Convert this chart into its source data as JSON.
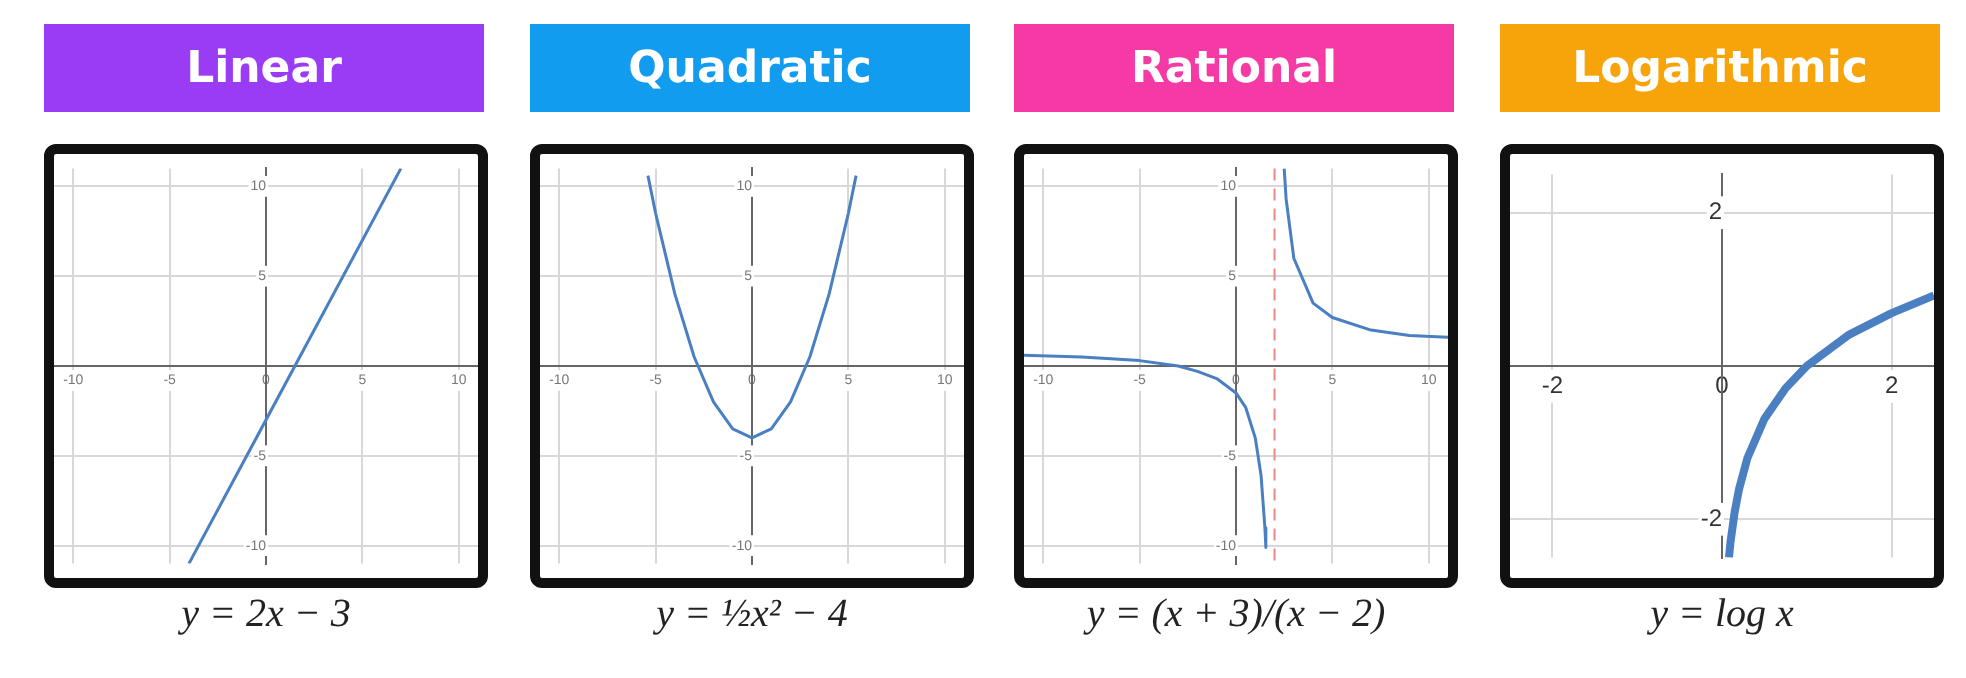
{
  "chart_data": [
    {
      "type": "line",
      "title": "Linear",
      "annotations": [
        "y = 2x − 3"
      ],
      "xlim": [
        -11,
        11
      ],
      "ylim": [
        -11,
        11
      ],
      "xticks": [
        -10,
        -5,
        0,
        5,
        10
      ],
      "yticks": [
        -10,
        -5,
        5,
        10
      ],
      "grid": true,
      "legend": false,
      "marker": "none",
      "line_style": "solid",
      "series": [
        {
          "color": "#4a7fc1",
          "x": [
            -4,
            7
          ],
          "values": [
            -11,
            11
          ]
        }
      ]
    },
    {
      "type": "line",
      "title": "Quadratic",
      "annotations": [
        "y = ½x² − 4"
      ],
      "xlim": [
        -11,
        11
      ],
      "ylim": [
        -11,
        11
      ],
      "xticks": [
        -10,
        -5,
        0,
        5,
        10
      ],
      "yticks": [
        -10,
        -5,
        5,
        10
      ],
      "grid": true,
      "legend": false,
      "marker": "none",
      "line_style": "solid",
      "series": [
        {
          "color": "#4a7fc1",
          "x": [
            -5.4,
            -5,
            -4,
            -3,
            -2,
            -1,
            0,
            1,
            2,
            3,
            4,
            5,
            5.4
          ],
          "values": [
            10.6,
            8.5,
            4,
            0.5,
            -2,
            -3.5,
            -4,
            -3.5,
            -2,
            0.5,
            4,
            8.5,
            10.6
          ]
        }
      ]
    },
    {
      "type": "line",
      "title": "Rational",
      "annotations": [
        "y = (x + 3)/(x − 2)"
      ],
      "xlim": [
        -11,
        11
      ],
      "ylim": [
        -11,
        11
      ],
      "xticks": [
        -10,
        -5,
        0,
        5,
        10
      ],
      "yticks": [
        -10,
        -5,
        5,
        10
      ],
      "grid": true,
      "legend": false,
      "marker": "none",
      "line_style": "solid",
      "ref_lines": [
        {
          "axis": "x",
          "value": 2,
          "color": "#e88a8a",
          "line_style": "dashed"
        }
      ],
      "series": [
        {
          "color": "#4a7fc1",
          "x": [
            -11,
            -8,
            -5,
            -3,
            -2,
            -1,
            0,
            0.5,
            1,
            1.3,
            1.5,
            1.55,
            2,
            2.5,
            2.6,
            3,
            4,
            5,
            7,
            9,
            11
          ],
          "values": [
            0.6,
            0.5,
            0.3,
            0,
            -0.3,
            -0.7,
            -1.5,
            -2.3,
            -4,
            -6.1,
            -9,
            -10.1,
            null,
            11,
            9.3,
            6,
            3.5,
            2.7,
            2,
            1.7,
            1.6
          ]
        }
      ]
    },
    {
      "type": "line",
      "title": "Logarithmic",
      "annotations": [
        "y = log x"
      ],
      "xlim": [
        -2.5,
        2.5
      ],
      "ylim": [
        -2.5,
        2.5
      ],
      "xticks": [
        -2,
        0,
        2
      ],
      "yticks": [
        -2,
        2
      ],
      "grid": true,
      "legend": false,
      "marker": "none",
      "line_style": "solid",
      "series": [
        {
          "color": "#4a7fc1",
          "x": [
            0.082,
            0.1,
            0.15,
            0.2,
            0.3,
            0.5,
            0.75,
            1,
            1.5,
            2,
            2.5
          ],
          "values": [
            -2.5,
            -2.3,
            -1.9,
            -1.61,
            -1.2,
            -0.69,
            -0.29,
            0,
            0.41,
            0.69,
            0.92
          ]
        }
      ]
    }
  ]
}
